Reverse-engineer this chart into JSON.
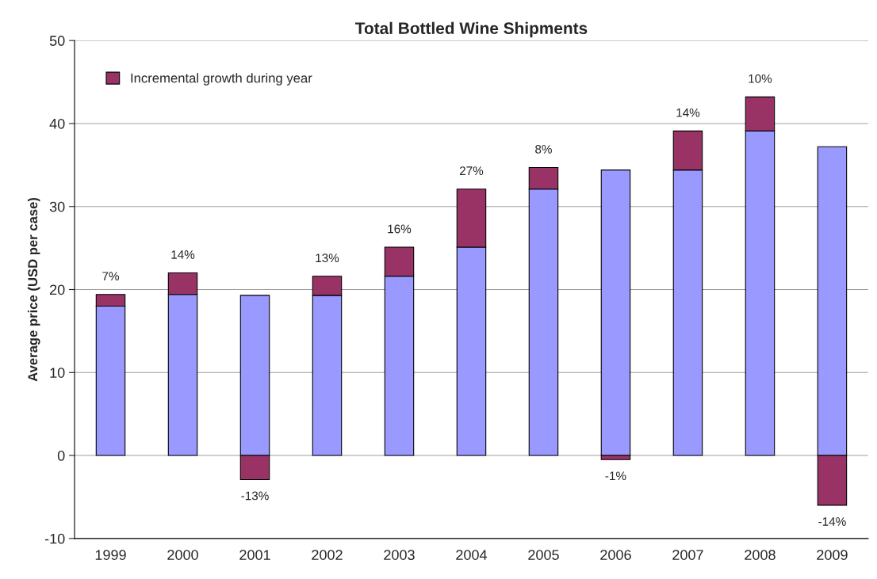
{
  "chart_data": {
    "type": "bar",
    "title": "Total Bottled Wine Shipments",
    "ylabel": "Average price (USD per case)",
    "categories": [
      "1999",
      "2000",
      "2001",
      "2002",
      "2003",
      "2004",
      "2005",
      "2006",
      "2007",
      "2008",
      "2009"
    ],
    "stacked": true,
    "series": [
      {
        "color": "#9999ff",
        "values": [
          18.0,
          19.4,
          19.3,
          19.3,
          21.6,
          25.1,
          32.1,
          34.4,
          34.4,
          39.1,
          37.2
        ]
      },
      {
        "name": "Incremental growth during year",
        "color": "#993366",
        "values": [
          1.4,
          2.6,
          -2.9,
          2.3,
          3.5,
          7.0,
          2.6,
          -0.5,
          4.7,
          4.1,
          -6.0
        ]
      }
    ],
    "annotations": [
      {
        "text": "7%",
        "x": "1999",
        "y": 19.4
      },
      {
        "text": "14%",
        "x": "2000",
        "y": 22.0
      },
      {
        "text": "-13%",
        "x": "2001",
        "y": -2.9
      },
      {
        "text": "13%",
        "x": "2002",
        "y": 21.6
      },
      {
        "text": "16%",
        "x": "2003",
        "y": 25.1
      },
      {
        "text": "27%",
        "x": "2004",
        "y": 32.1
      },
      {
        "text": "8%",
        "x": "2005",
        "y": 34.7
      },
      {
        "text": "-1%",
        "x": "2006",
        "y": -0.5
      },
      {
        "text": "14%",
        "x": "2007",
        "y": 39.1
      },
      {
        "text": "10%",
        "x": "2008",
        "y": 43.2
      },
      {
        "text": "-14%",
        "x": "2009",
        "y": -6.0
      }
    ],
    "ylim": [
      -10,
      50
    ],
    "yticks": [
      -10,
      0,
      10,
      20,
      30,
      40,
      50
    ],
    "grid": "y",
    "legend": "top left"
  }
}
